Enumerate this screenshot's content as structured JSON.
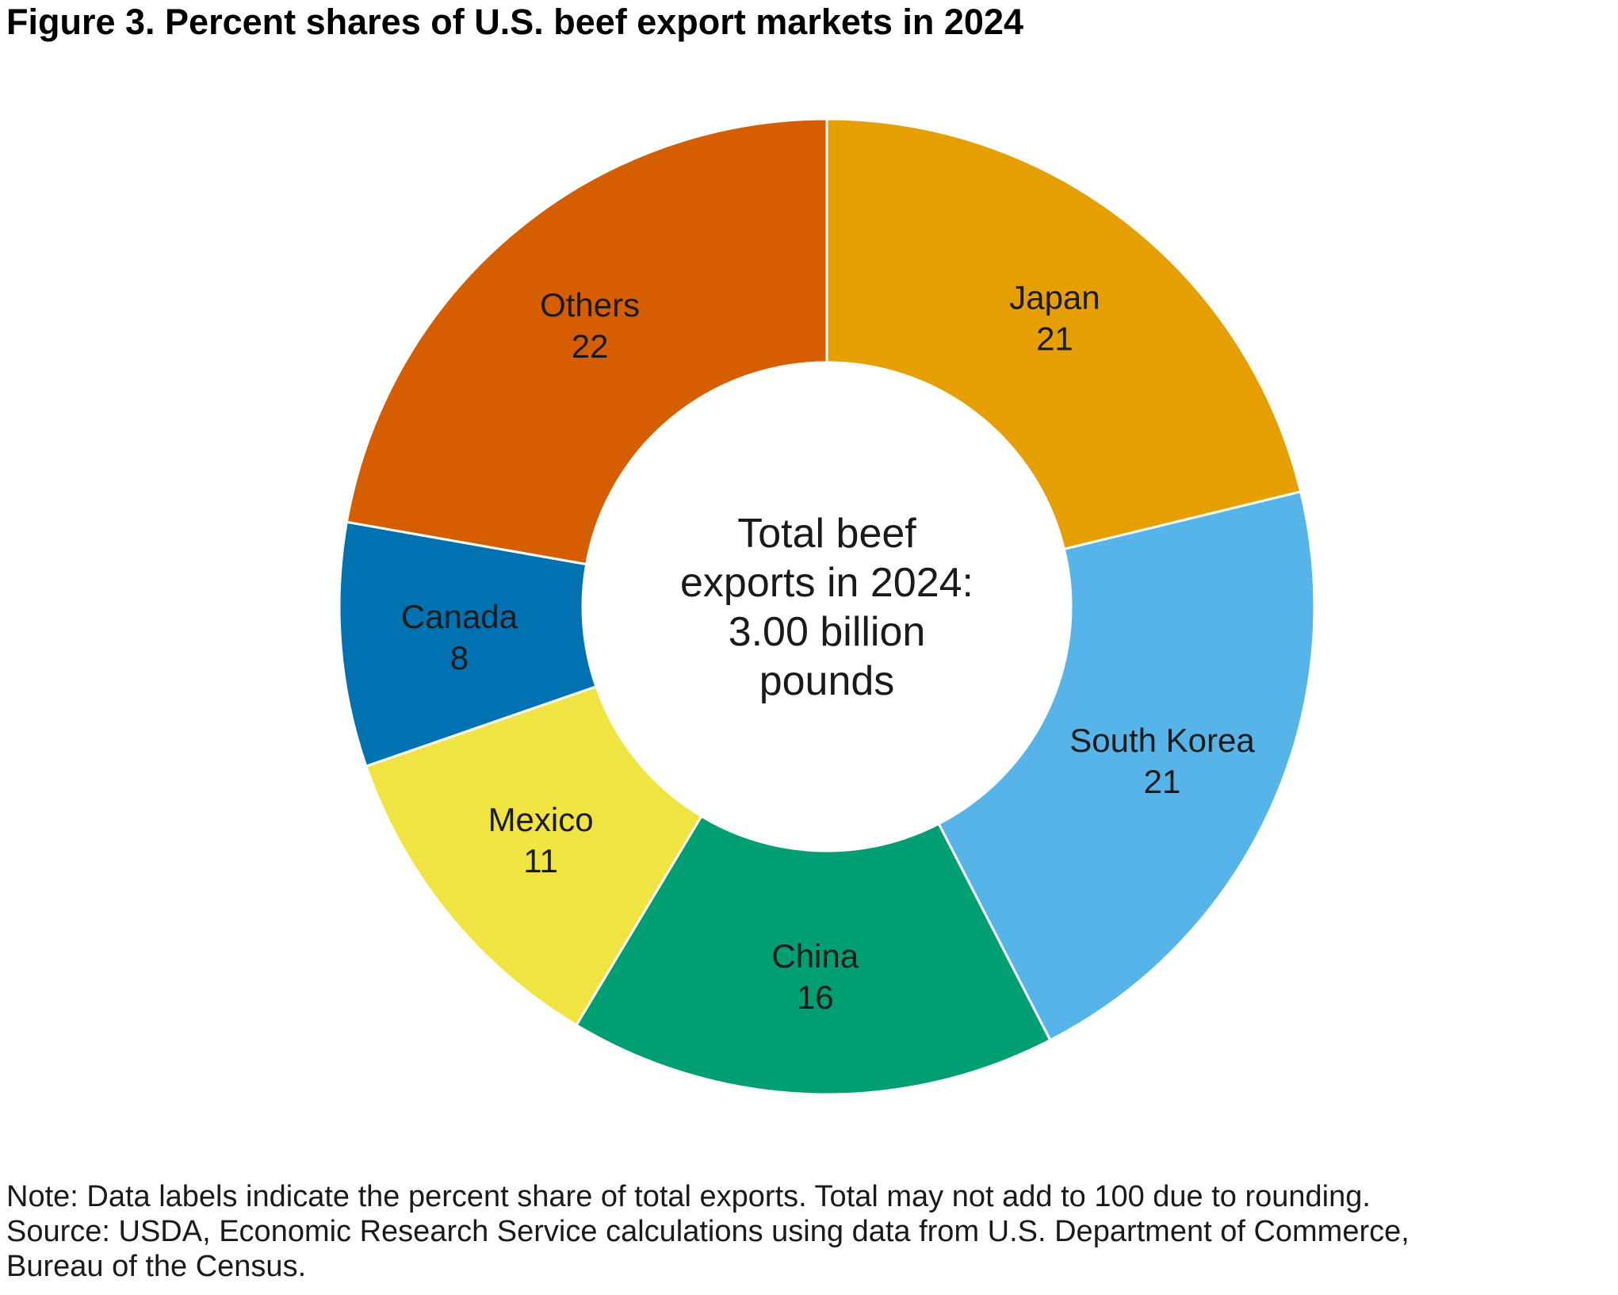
{
  "title": "Figure 3. Percent shares of U.S. beef export markets in 2024",
  "chart_data": {
    "type": "pie",
    "variant": "donut",
    "slices": [
      {
        "label": "Japan",
        "value": 21,
        "color": "#E69F00"
      },
      {
        "label": "South Korea",
        "value": 21,
        "color": "#56B4E9"
      },
      {
        "label": "China",
        "value": 16,
        "color": "#009E73"
      },
      {
        "label": "Mexico",
        "value": 11,
        "color": "#F0E442"
      },
      {
        "label": "Canada",
        "value": 8,
        "color": "#0072B2"
      },
      {
        "label": "Others",
        "value": 22,
        "color": "#D55E00"
      }
    ],
    "center_text": [
      "Total beef",
      "exports in 2024:",
      "3.00 billion",
      "pounds"
    ]
  },
  "notes": {
    "note": "Note: Data labels indicate the percent share of total exports. Total may not add to 100 due to rounding.",
    "source_line1": "Source: USDA, Economic Research Service calculations using data from U.S. Department of Commerce,",
    "source_line2": "Bureau of the Census."
  }
}
